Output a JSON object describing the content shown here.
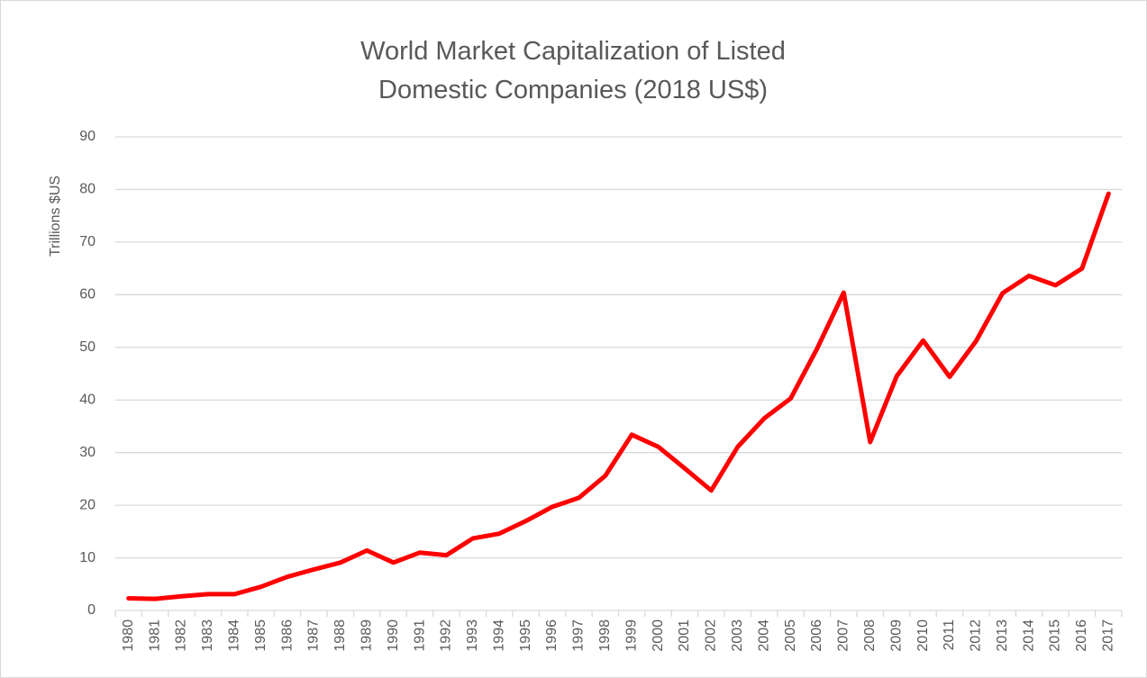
{
  "chart_data": {
    "type": "line",
    "title": "World Market Capitalization of Listed Domestic Companies (2018 US$)",
    "y_label": "Trillions $US",
    "categories": [
      "1980",
      "1981",
      "1982",
      "1983",
      "1984",
      "1985",
      "1986",
      "1987",
      "1988",
      "1989",
      "1990",
      "1991",
      "1992",
      "1993",
      "1994",
      "1995",
      "1996",
      "1997",
      "1998",
      "1999",
      "2000",
      "2001",
      "2002",
      "2003",
      "2004",
      "2005",
      "2006",
      "2007",
      "2008",
      "2009",
      "2010",
      "2011",
      "2012",
      "2013",
      "2014",
      "2015",
      "2016",
      "2017"
    ],
    "values": [
      2.3,
      2.2,
      2.7,
      3.1,
      3.1,
      4.5,
      6.4,
      7.8,
      9.1,
      11.4,
      9.1,
      11.0,
      10.5,
      13.7,
      14.6,
      17.0,
      19.7,
      21.4,
      25.6,
      33.4,
      31.1,
      27.0,
      22.8,
      31.1,
      36.5,
      40.3,
      49.8,
      60.4,
      32.0,
      44.5,
      51.3,
      44.4,
      51.2,
      60.3,
      63.6,
      61.8,
      65.0,
      79.2
    ],
    "color": "#ff0000",
    "ylim": [
      0,
      90
    ],
    "yticks": [
      0,
      10,
      20,
      30,
      40,
      50,
      60,
      70,
      80,
      90
    ],
    "grid": true
  }
}
